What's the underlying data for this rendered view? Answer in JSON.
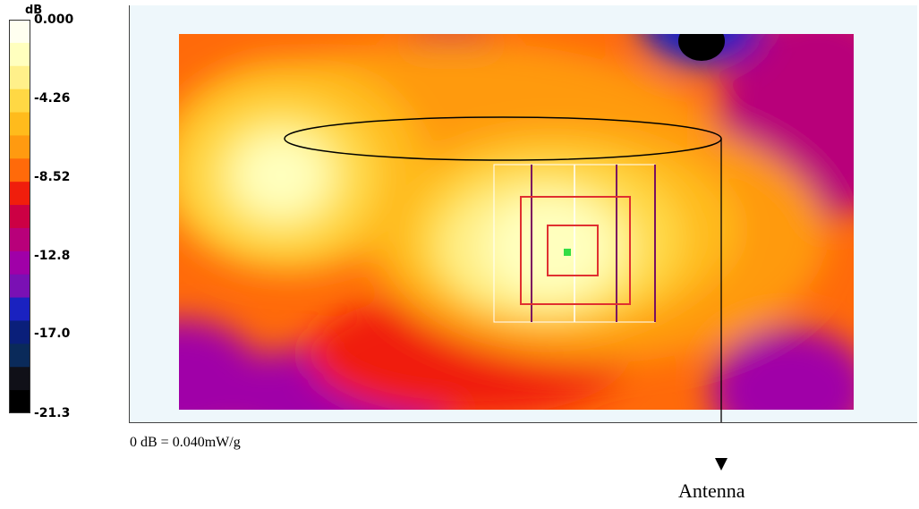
{
  "chart_data": {
    "type": "heatmap",
    "legend": {
      "unit": "dB",
      "ticks": [
        "0.000",
        "-4.26",
        "-8.52",
        "-12.8",
        "-17.0",
        "-21.3"
      ],
      "tick_values": [
        0.0,
        -4.26,
        -8.52,
        -12.8,
        -17.0,
        -21.3
      ],
      "range": [
        -21.3,
        0.0
      ],
      "colors": [
        "#fffff0",
        "#ffffbe",
        "#fff08a",
        "#ffd844",
        "#ffbb1c",
        "#ff9a10",
        "#ff6a0a",
        "#f01e0c",
        "#cc0044",
        "#b8007a",
        "#a000a8",
        "#7a10b4",
        "#1a22c0",
        "#0a1f7a",
        "#0a2a5a",
        "#101018",
        "#000000"
      ]
    },
    "reference_note": "0 dB = 0.040mW/g",
    "annotation": "Antenna"
  }
}
